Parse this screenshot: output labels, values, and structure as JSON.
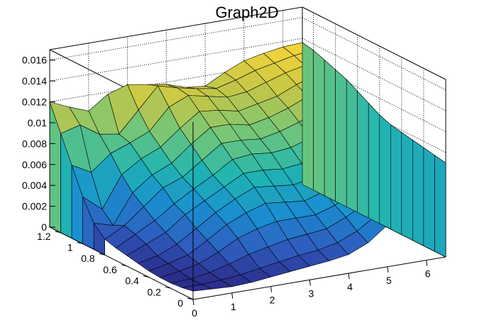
{
  "chart_data": {
    "type": "surface",
    "title": "Graph2D",
    "colormap": [
      "#2a1d7a",
      "#2f5cbf",
      "#1a8fd0",
      "#20b5b0",
      "#6fc67a",
      "#bfc64a",
      "#f2d33a"
    ],
    "x": {
      "ticks": [
        "0",
        "1",
        "2",
        "3",
        "4",
        "5",
        "6"
      ],
      "range": [
        0,
        6.5
      ]
    },
    "y": {
      "ticks": [
        "0",
        "0.2",
        "0.4",
        "0.6",
        "0.8",
        "1",
        "1.2"
      ],
      "range": [
        0,
        1.3
      ]
    },
    "z": {
      "ticks": [
        "0",
        "0.002",
        "0.004",
        "0.006",
        "0.008",
        "0.01",
        "0.012",
        "0.014",
        "0.016"
      ],
      "range": [
        0,
        0.017
      ]
    },
    "grid": true,
    "surface_rows_y": [
      1.3,
      1.2,
      1.1,
      1.0,
      0.9,
      0.8,
      0.7,
      0.6,
      0.5,
      0.4,
      0.3,
      0.2,
      0.1,
      0.0
    ],
    "surface_x": [
      0,
      0.5,
      1.0,
      1.5,
      2.0,
      2.5,
      3.0,
      3.5,
      4.0,
      4.5,
      5.0,
      5.5,
      6.0,
      6.5
    ],
    "surface_z": [
      [
        0.012,
        0.0112,
        0.0105,
        0.0118,
        0.0124,
        0.0121,
        0.0118,
        0.0112,
        0.011,
        0.012,
        0.0128,
        0.0132,
        0.0135,
        0.0136
      ],
      [
        0.0095,
        0.01,
        0.0088,
        0.0085,
        0.0105,
        0.0125,
        0.012,
        0.0116,
        0.0113,
        0.0118,
        0.0124,
        0.0128,
        0.0132,
        0.0134
      ],
      [
        0.007,
        0.006,
        0.0075,
        0.0082,
        0.009,
        0.011,
        0.0118,
        0.0114,
        0.011,
        0.0112,
        0.0118,
        0.0124,
        0.0128,
        0.013
      ],
      [
        0.0045,
        0.003,
        0.006,
        0.0072,
        0.008,
        0.0095,
        0.0108,
        0.0106,
        0.0102,
        0.0106,
        0.011,
        0.0118,
        0.0124,
        0.0126
      ],
      [
        0.0025,
        0.002,
        0.0048,
        0.0062,
        0.007,
        0.0085,
        0.0098,
        0.0098,
        0.0094,
        0.0098,
        0.0104,
        0.0112,
        0.0118,
        0.0122
      ],
      [
        0.0015,
        0.0025,
        0.004,
        0.0055,
        0.0062,
        0.0075,
        0.0088,
        0.0088,
        0.0086,
        0.009,
        0.0096,
        0.0104,
        0.011,
        0.0116
      ],
      [
        0.0012,
        0.0022,
        0.0032,
        0.0045,
        0.0056,
        0.0066,
        0.0078,
        0.008,
        0.0078,
        0.008,
        0.0086,
        0.0094,
        0.0102,
        0.011
      ],
      [
        0.001,
        0.0018,
        0.0026,
        0.004,
        0.005,
        0.006,
        0.007,
        0.007,
        0.0068,
        0.007,
        0.0076,
        0.0084,
        0.0094,
        0.0104
      ],
      [
        0.0008,
        0.0012,
        0.002,
        0.0032,
        0.0044,
        0.0054,
        0.0062,
        0.006,
        0.0058,
        0.0062,
        0.0068,
        0.0078,
        0.0088,
        0.01
      ],
      [
        0.0006,
        0.001,
        0.0015,
        0.0026,
        0.0038,
        0.0046,
        0.0052,
        0.005,
        0.0048,
        0.0054,
        0.0062,
        0.0072,
        0.0084,
        0.0098
      ],
      [
        0.0005,
        0.0008,
        0.0012,
        0.002,
        0.003,
        0.0036,
        0.004,
        0.004,
        0.004,
        0.0046,
        0.0056,
        0.0068,
        0.008,
        0.0096
      ],
      [
        0.0005,
        0.0006,
        0.0009,
        0.0014,
        0.002,
        0.0024,
        0.0028,
        0.003,
        0.0032,
        0.004,
        0.005,
        0.0064,
        0.0078,
        0.0094
      ],
      [
        0.0006,
        0.0006,
        0.0007,
        0.0009,
        0.0012,
        0.0015,
        0.0018,
        0.002,
        0.0024,
        0.0032,
        0.0044,
        0.006,
        0.0076,
        0.0092
      ],
      [
        0.0008,
        0.0007,
        0.0006,
        0.0007,
        0.0009,
        0.0011,
        0.0013,
        0.0015,
        0.0018,
        0.0026,
        0.004,
        0.0056,
        0.0074,
        0.009
      ]
    ]
  }
}
